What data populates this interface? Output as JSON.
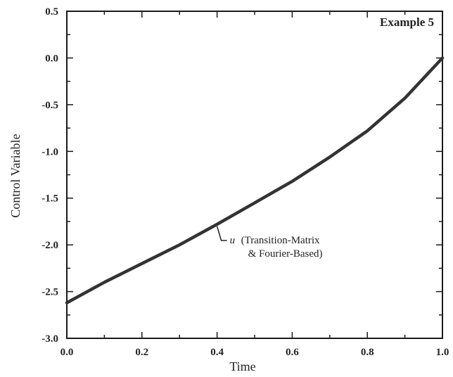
{
  "chart_data": {
    "type": "line",
    "xlabel": "Time",
    "ylabel": "Control Variable",
    "panel_label": "Example 5",
    "xlim": [
      0.0,
      1.0
    ],
    "ylim": [
      -3.0,
      0.5
    ],
    "x_ticks": [
      "0.0",
      "0.2",
      "0.4",
      "0.6",
      "0.8",
      "1.0"
    ],
    "y_ticks": [
      "0.5",
      "0.0",
      "-0.5",
      "-1.0",
      "-1.5",
      "-2.0",
      "-2.5",
      "-3.0"
    ],
    "grid": false,
    "series": [
      {
        "name": "u (Transition-Matrix & Fourier-Based)",
        "x": [
          0.0,
          0.1,
          0.2,
          0.3,
          0.4,
          0.5,
          0.6,
          0.7,
          0.8,
          0.9,
          1.0
        ],
        "y": [
          -2.62,
          -2.4,
          -2.2,
          -2.0,
          -1.78,
          -1.55,
          -1.32,
          -1.06,
          -0.78,
          -0.43,
          0.0
        ]
      }
    ],
    "annotation": {
      "symbol": "u",
      "line1": "(Transition-Matrix",
      "line2": "& Fourier-Based)",
      "points_to_x": 0.4
    }
  }
}
